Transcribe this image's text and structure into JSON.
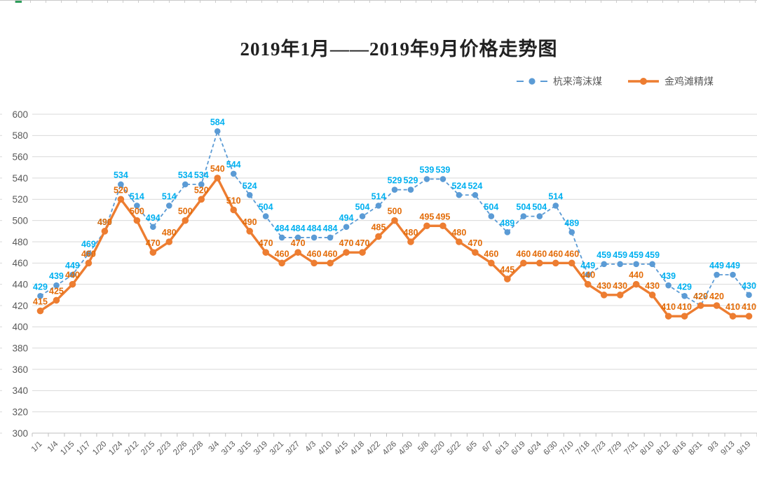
{
  "chart_data": {
    "type": "line",
    "title": "2019年1月——2019年9月价格走势图",
    "categories": [
      "1/1",
      "1/4",
      "1/15",
      "1/17",
      "1/20",
      "1/24",
      "2/12",
      "2/15",
      "2/23",
      "2/26",
      "2/28",
      "3/4",
      "3/13",
      "3/15",
      "3/19",
      "3/21",
      "3/27",
      "4/3",
      "4/10",
      "4/15",
      "4/18",
      "4/22",
      "4/26",
      "4/30",
      "5/8",
      "5/20",
      "5/22",
      "6/5",
      "6/7",
      "6/13",
      "6/19",
      "6/24",
      "6/30",
      "7/10",
      "7/18",
      "7/23",
      "7/29",
      "7/31",
      "8/10",
      "8/12",
      "8/16",
      "8/31",
      "9/3",
      "9/13",
      "9/19"
    ],
    "series": [
      {
        "name": "杭来湾沫煤",
        "line_style": "dashed",
        "line_color": "#5B9BD5",
        "label_color": "#00B0F0",
        "values": [
          429,
          439,
          449,
          469,
          490,
          534,
          514,
          494,
          514,
          534,
          534,
          584,
          544,
          524,
          504,
          484,
          484,
          484,
          484,
          494,
          504,
          514,
          529,
          529,
          539,
          539,
          524,
          524,
          504,
          489,
          504,
          504,
          514,
          489,
          449,
          459,
          459,
          459,
          459,
          439,
          429,
          420,
          449,
          449,
          430
        ]
      },
      {
        "name": "金鸡滩精煤",
        "line_style": "solid",
        "line_color": "#ED7D31",
        "label_color": "#E36C09",
        "values": [
          415,
          425,
          440,
          460,
          490,
          520,
          500,
          470,
          480,
          500,
          520,
          540,
          510,
          490,
          470,
          460,
          470,
          460,
          460,
          470,
          470,
          485,
          500,
          480,
          495,
          495,
          480,
          470,
          460,
          445,
          460,
          460,
          460,
          460,
          440,
          430,
          430,
          440,
          430,
          410,
          410,
          420,
          420,
          410,
          410
        ]
      }
    ],
    "ylim": [
      300,
      600
    ],
    "ytick_step": 20,
    "grid": true,
    "show_data_labels": true,
    "legend_position": "top-right",
    "xlabel": "",
    "ylabel": "",
    "axis_label_color": "#595959",
    "grid_color": "#D9D9D9",
    "axis_line_color": "#BFBFBF"
  }
}
